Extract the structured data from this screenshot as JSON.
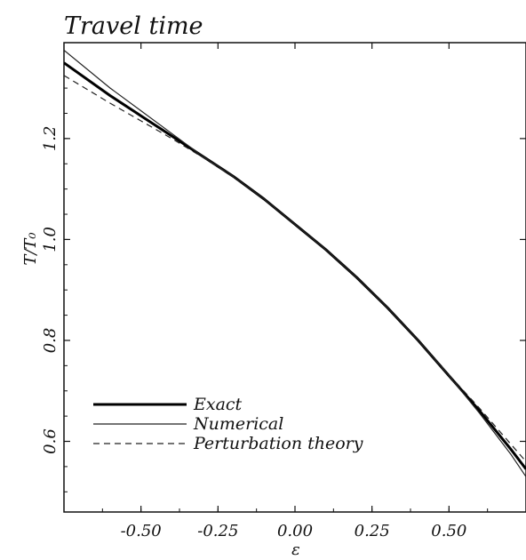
{
  "chart_data": {
    "type": "line",
    "title": "Travel time",
    "xlabel": "ε",
    "ylabel": "T/T₀",
    "xlim": [
      -0.75,
      0.75
    ],
    "ylim": [
      0.46,
      1.39
    ],
    "xticks": [
      -0.5,
      -0.25,
      0.0,
      0.25,
      0.5
    ],
    "xtick_labels": [
      "-0.50",
      "-0.25",
      "0.00",
      "0.25",
      "0.50"
    ],
    "yticks": [
      0.6,
      0.8,
      1.0,
      1.2
    ],
    "ytick_labels": [
      "0.6",
      "0.8",
      "1.0",
      "1.2"
    ],
    "grid": false,
    "legend_position": "bottom-left",
    "series": [
      {
        "name": "Exact",
        "style": "thick-solid",
        "x": [
          -0.75,
          -0.6,
          -0.5,
          -0.4,
          -0.3,
          -0.2,
          -0.1,
          0.0,
          0.1,
          0.2,
          0.3,
          0.4,
          0.5,
          0.6,
          0.7,
          0.75
        ],
        "y": [
          1.35,
          1.285,
          1.245,
          1.205,
          1.165,
          1.125,
          1.08,
          1.03,
          0.98,
          0.925,
          0.865,
          0.8,
          0.73,
          0.66,
          0.585,
          0.545
        ]
      },
      {
        "name": "Numerical",
        "style": "thin-solid",
        "x": [
          -0.75,
          -0.6,
          -0.5,
          -0.4,
          -0.3,
          -0.2,
          -0.1,
          0.0,
          0.1,
          0.2,
          0.3,
          0.4,
          0.5,
          0.6,
          0.7,
          0.75
        ],
        "y": [
          1.375,
          1.3,
          1.255,
          1.21,
          1.165,
          1.125,
          1.08,
          1.03,
          0.98,
          0.925,
          0.865,
          0.8,
          0.73,
          0.655,
          0.575,
          0.53
        ]
      },
      {
        "name": "Perturbation theory",
        "style": "dashed",
        "x": [
          -0.75,
          -0.6,
          -0.5,
          -0.4,
          -0.3,
          -0.2,
          -0.1,
          0.0,
          0.1,
          0.2,
          0.3,
          0.4,
          0.5,
          0.6,
          0.7,
          0.75
        ],
        "y": [
          1.325,
          1.27,
          1.235,
          1.2,
          1.163,
          1.124,
          1.08,
          1.03,
          0.98,
          0.925,
          0.865,
          0.8,
          0.732,
          0.665,
          0.595,
          0.56
        ]
      }
    ]
  }
}
